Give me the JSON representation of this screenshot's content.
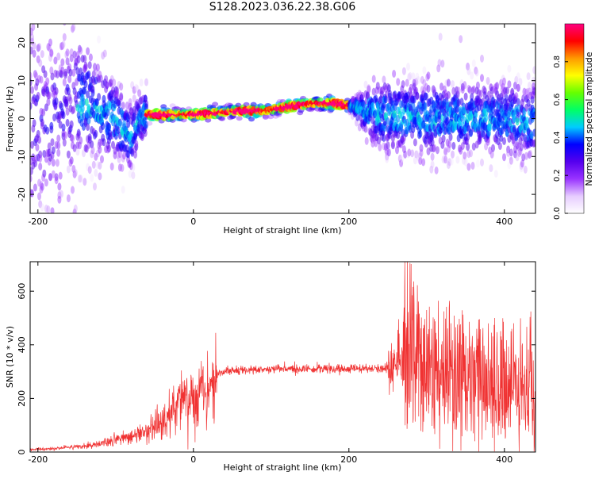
{
  "title": "S128.2023.036.22.38.G06",
  "chart_data": [
    {
      "type": "heatmap",
      "xlabel": "Height of straight line (km)",
      "ylabel": "Frequency (Hz)",
      "xlim": [
        -210,
        440
      ],
      "ylim": [
        -25,
        25
      ],
      "xticks": [
        -200,
        0,
        200,
        400
      ],
      "yticks": [
        -20,
        -10,
        0,
        10,
        20
      ],
      "grid": false,
      "colorbar": {
        "label": "Normalized spectral amplitude",
        "range": [
          0,
          1
        ],
        "ticks": [
          0.0,
          0.2,
          0.4,
          0.6,
          0.8
        ],
        "colormap": [
          "#ffffff",
          "#e6ccff",
          "#9933ff",
          "#5500ee",
          "#0000ff",
          "#00ccff",
          "#00ff66",
          "#66ff00",
          "#ffff00",
          "#ff9900",
          "#ff0000",
          "#ff0080"
        ]
      },
      "ridge": {
        "x": [
          -180,
          -150,
          -120,
          -100,
          -90,
          -80,
          -75,
          -70,
          -60,
          -40,
          0,
          30,
          60,
          90,
          120,
          150,
          180,
          200,
          220,
          250,
          300,
          350,
          400,
          430
        ],
        "y": [
          0,
          5,
          2,
          0,
          -3,
          -5,
          -3,
          0,
          1,
          1,
          1,
          1.5,
          2,
          2,
          3,
          4,
          4,
          3.5,
          2,
          1,
          0,
          0,
          0,
          -1
        ],
        "note_free_rows": []
      }
    },
    {
      "type": "line",
      "xlabel": "Height of straight line (km)",
      "ylabel": "SNR (10 * v/v)",
      "xlim": [
        -210,
        440
      ],
      "ylim": [
        0,
        710
      ],
      "xticks": [
        -200,
        0,
        200,
        400
      ],
      "yticks": [
        0,
        200,
        400,
        600
      ],
      "color": "#f03232",
      "grid": false,
      "series": [
        {
          "x": [
            -210,
            -180,
            -150,
            -120,
            -100,
            -80,
            -60,
            -40,
            -20,
            0,
            10,
            20,
            30,
            40,
            60,
            100,
            150,
            200,
            240,
            255,
            270,
            280,
            300,
            350,
            400,
            440
          ],
          "values": [
            10,
            12,
            20,
            30,
            45,
            60,
            80,
            110,
            170,
            200,
            235,
            255,
            290,
            300,
            305,
            310,
            310,
            310,
            310,
            320,
            330,
            300,
            250,
            220,
            210,
            220
          ]
        }
      ]
    }
  ]
}
